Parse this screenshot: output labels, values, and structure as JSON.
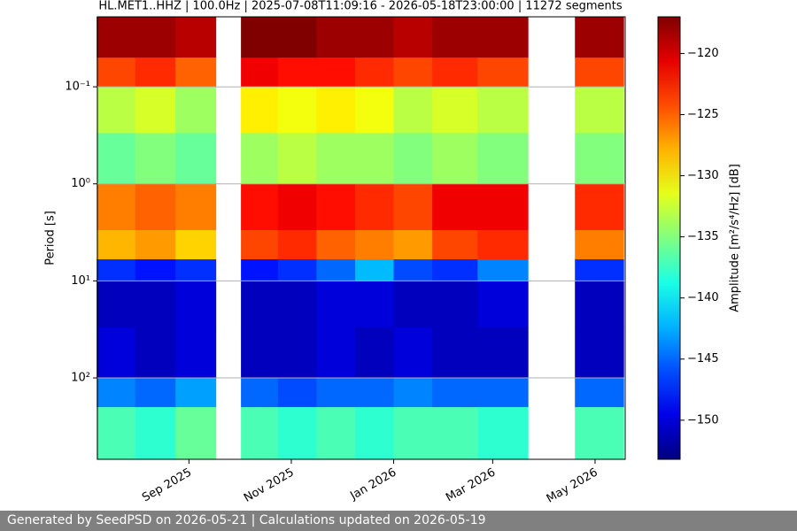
{
  "chart_data": {
    "type": "heatmap",
    "title": "HL.MET1..HHZ | 100.0Hz | 2025-07-08T11:09:16 - 2026-05-18T23:00:00 | 11272 segments",
    "ylabel": "Period [s]",
    "colorbar_label": "Amplitude [m²/s⁴/Hz] [dB]",
    "colormap": "jet",
    "y_log": true,
    "y_inverted": true,
    "grid": true,
    "xlim": [
      "2025-07-08T11:09:16",
      "2026-05-18T23:00:00"
    ],
    "xticks": [
      {
        "value": "2025-09-01",
        "label": "Sep 2025"
      },
      {
        "value": "2025-11-01",
        "label": "Nov 2025"
      },
      {
        "value": "2026-01-01",
        "label": "Jan 2026"
      },
      {
        "value": "2026-03-01",
        "label": "Mar 2026"
      },
      {
        "value": "2026-05-01",
        "label": "May 2026"
      }
    ],
    "ylim": [
      0.019,
      690
    ],
    "yticks": [
      {
        "value": 0.1,
        "label": "10⁻¹"
      },
      {
        "value": 1,
        "label": "10⁰"
      },
      {
        "value": 10,
        "label": "10¹"
      },
      {
        "value": 100,
        "label": "10²"
      }
    ],
    "clim": [
      -153.2,
      -117
    ],
    "cticks": [
      {
        "value": -120,
        "label": "−120"
      },
      {
        "value": -125,
        "label": "−125"
      },
      {
        "value": -130,
        "label": "−130"
      },
      {
        "value": -135,
        "label": "−135"
      },
      {
        "value": -140,
        "label": "−140"
      },
      {
        "value": -145,
        "label": "−145"
      },
      {
        "value": -150,
        "label": "−150"
      }
    ],
    "x_bins": [
      "2025-07-08",
      "2025-07-31",
      "2025-08-24",
      "2025-09-17",
      "2025-10-02",
      "2025-10-24",
      "2025-11-16",
      "2025-12-09",
      "2026-01-01",
      "2026-01-24",
      "2026-02-20",
      "2026-03-22",
      "2026-04-19",
      "2026-05-18"
    ],
    "y_bins": [
      0.019,
      0.05,
      0.1,
      0.3,
      1,
      3,
      6,
      10,
      30,
      100,
      200,
      690
    ],
    "z": [
      [
        -118,
        -124,
        -133,
        -136,
        -126,
        -128,
        -147,
        -151,
        -150,
        -144,
        -137
      ],
      [
        -118,
        -123,
        -132,
        -135,
        -125,
        -127,
        -148,
        -151,
        -151,
        -145,
        -138
      ],
      [
        -119,
        -125,
        -134,
        -136,
        -126,
        -129,
        -147,
        -150,
        -150,
        -143,
        -136
      ],
      null,
      [
        -117,
        -121,
        -130,
        -134,
        -122,
        -124,
        -148,
        -151,
        -151,
        -145,
        -137
      ],
      [
        -117,
        -122,
        -131,
        -133,
        -121,
        -123,
        -147,
        -151,
        -151,
        -146,
        -138
      ],
      [
        -118,
        -122,
        -130,
        -134,
        -122,
        -125,
        -145,
        -150,
        -150,
        -145,
        -137
      ],
      [
        -118,
        -123,
        -131,
        -134,
        -123,
        -126,
        -142,
        -150,
        -151,
        -145,
        -138
      ],
      [
        -119,
        -124,
        -133,
        -135,
        -124,
        -127,
        -146,
        -151,
        -150,
        -144,
        -137
      ],
      [
        -118,
        -123,
        -132,
        -134,
        -121,
        -124,
        -147,
        -151,
        -151,
        -145,
        -137
      ],
      [
        -118,
        -124,
        -133,
        -135,
        -121,
        -123,
        -144,
        -150,
        -151,
        -145,
        -138
      ],
      null,
      [
        -118,
        -124,
        -133,
        -135,
        -123,
        -126,
        -147,
        -151,
        -151,
        -145,
        -137
      ]
    ]
  },
  "footer": "Generated by SeedPSD on 2026-05-21 | Calculations updated on 2026-05-19"
}
